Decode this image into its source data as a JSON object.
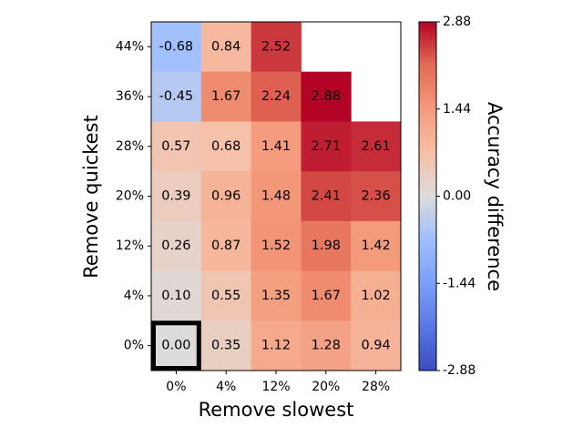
{
  "chart_data": {
    "type": "heatmap",
    "title": "",
    "xlabel": "Remove slowest",
    "ylabel": "Remove quickest",
    "x_categories": [
      "0%",
      "4%",
      "12%",
      "20%",
      "28%"
    ],
    "y_categories": [
      "44%",
      "36%",
      "28%",
      "20%",
      "12%",
      "4%",
      "0%"
    ],
    "values": [
      [
        -0.68,
        0.84,
        2.52,
        null,
        null
      ],
      [
        -0.45,
        1.67,
        2.24,
        2.88,
        null
      ],
      [
        0.57,
        0.68,
        1.41,
        2.71,
        2.61
      ],
      [
        0.39,
        0.96,
        1.48,
        2.41,
        2.36
      ],
      [
        0.26,
        0.87,
        1.52,
        1.98,
        1.42
      ],
      [
        0.1,
        0.55,
        1.35,
        1.67,
        1.02
      ],
      [
        0.0,
        0.35,
        1.12,
        1.28,
        0.94
      ]
    ],
    "value_labels": [
      [
        "-0.68",
        "0.84",
        "2.52",
        "",
        ""
      ],
      [
        "-0.45",
        "1.67",
        "2.24",
        "2.88",
        ""
      ],
      [
        "0.57",
        "0.68",
        "1.41",
        "2.71",
        "2.61"
      ],
      [
        "0.39",
        "0.96",
        "1.48",
        "2.41",
        "2.36"
      ],
      [
        "0.26",
        "0.87",
        "1.52",
        "1.98",
        "1.42"
      ],
      [
        "0.10",
        "0.55",
        "1.35",
        "1.67",
        "1.02"
      ],
      [
        "0.00",
        "0.35",
        "1.12",
        "1.28",
        "0.94"
      ]
    ],
    "highlighted_cell": {
      "row_label": "0%",
      "col_label": "0%"
    },
    "colormap": "coolwarm",
    "colorbar": {
      "label": "Accuracy difference",
      "range": [
        -2.88,
        2.88
      ],
      "ticks": [
        2.88,
        1.44,
        0.0,
        -1.44,
        -2.88
      ],
      "tick_labels": [
        "2.88",
        "1.44",
        "0.00",
        "-1.44",
        "-2.88"
      ]
    }
  }
}
